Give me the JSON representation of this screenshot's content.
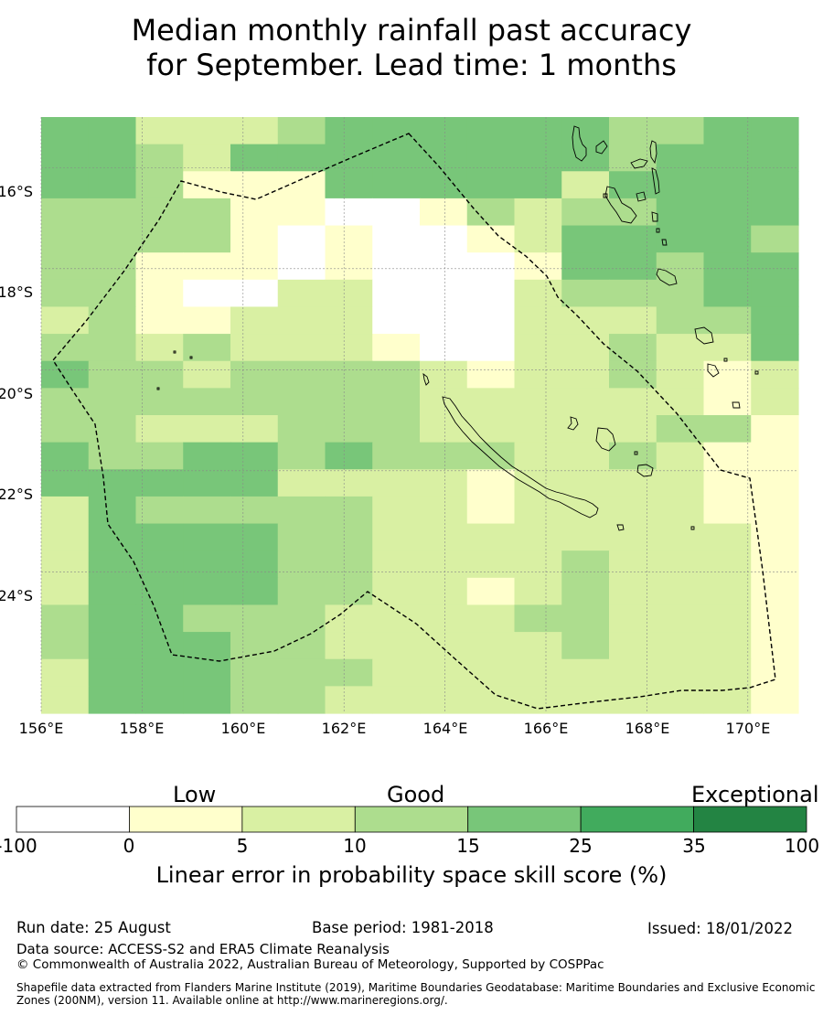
{
  "title": {
    "line1": "Median monthly rainfall past accuracy",
    "line2": "for September. Lead time: 1 months"
  },
  "map": {
    "lon_range": [
      156,
      171
    ],
    "lat_range": [
      -26.8,
      -15.0
    ],
    "x_ticks": [
      "156°E",
      "158°E",
      "160°E",
      "162°E",
      "164°E",
      "166°E",
      "168°E",
      "170°E"
    ],
    "y_ticks": [
      "16°S",
      "18°S",
      "20°S",
      "22°S",
      "24°S"
    ],
    "gridlines": true,
    "ocean_color": "#ffffff",
    "boundary": "dashed EEZ outline",
    "skill_grid_legend": "0 = <0 (white), 1 = 0–5, 2 = 5–10, 3 = 10–15, 4 = 15–25, 5 = 25–35, 6 = 35–100",
    "skill_grid": [
      "4422234444443344",
      "4432444444443444",
      "4431114444424444",
      "3333110013233444",
      "3333101001244443",
      "3311101000144344",
      "3310022000233344",
      "2311222000222334",
      "3323222100223224",
      "4332333321223212",
      "3333333322222212",
      "3322233322222331",
      "4334434333223211",
      "4444422221222211",
      "2433333221222211",
      "2444433222222221",
      "2444433222232221",
      "2444433221232221",
      "3443332222332221",
      "3444332222232221",
      "2444333222222221",
      "2444332222222221"
    ]
  },
  "colorbar": {
    "categories": [
      "Low",
      "Good",
      "Exceptional"
    ],
    "boundaries": [
      "-100",
      "0",
      "5",
      "10",
      "15",
      "25",
      "35",
      "100"
    ],
    "colors": [
      "#ffffff",
      "#ffffcc",
      "#d9f0a3",
      "#addd8e",
      "#78c679",
      "#41ab5d",
      "#238443"
    ],
    "title": "Linear error in probability space skill score (%)"
  },
  "footer": {
    "run_date": "Run date: 25 August",
    "base_period": "Base period: 1981-2018",
    "issued": "Issued: 18/01/2022",
    "data_source": "Data source: ACCESS-S2 and ERA5 Climate Reanalysis",
    "copyright": "© Commonwealth of Australia 2022, Australian Bureau of Meteorology, Supported by COSPPac",
    "shapefile_line1": "Shapefile data extracted from Flanders Marine Institute (2019), Maritime Boundaries Geodatabase: Maritime Boundaries and Exclusive Economic",
    "shapefile_line2": "Zones (200NM), version 11. Available online at http://www.marineregions.org/."
  }
}
